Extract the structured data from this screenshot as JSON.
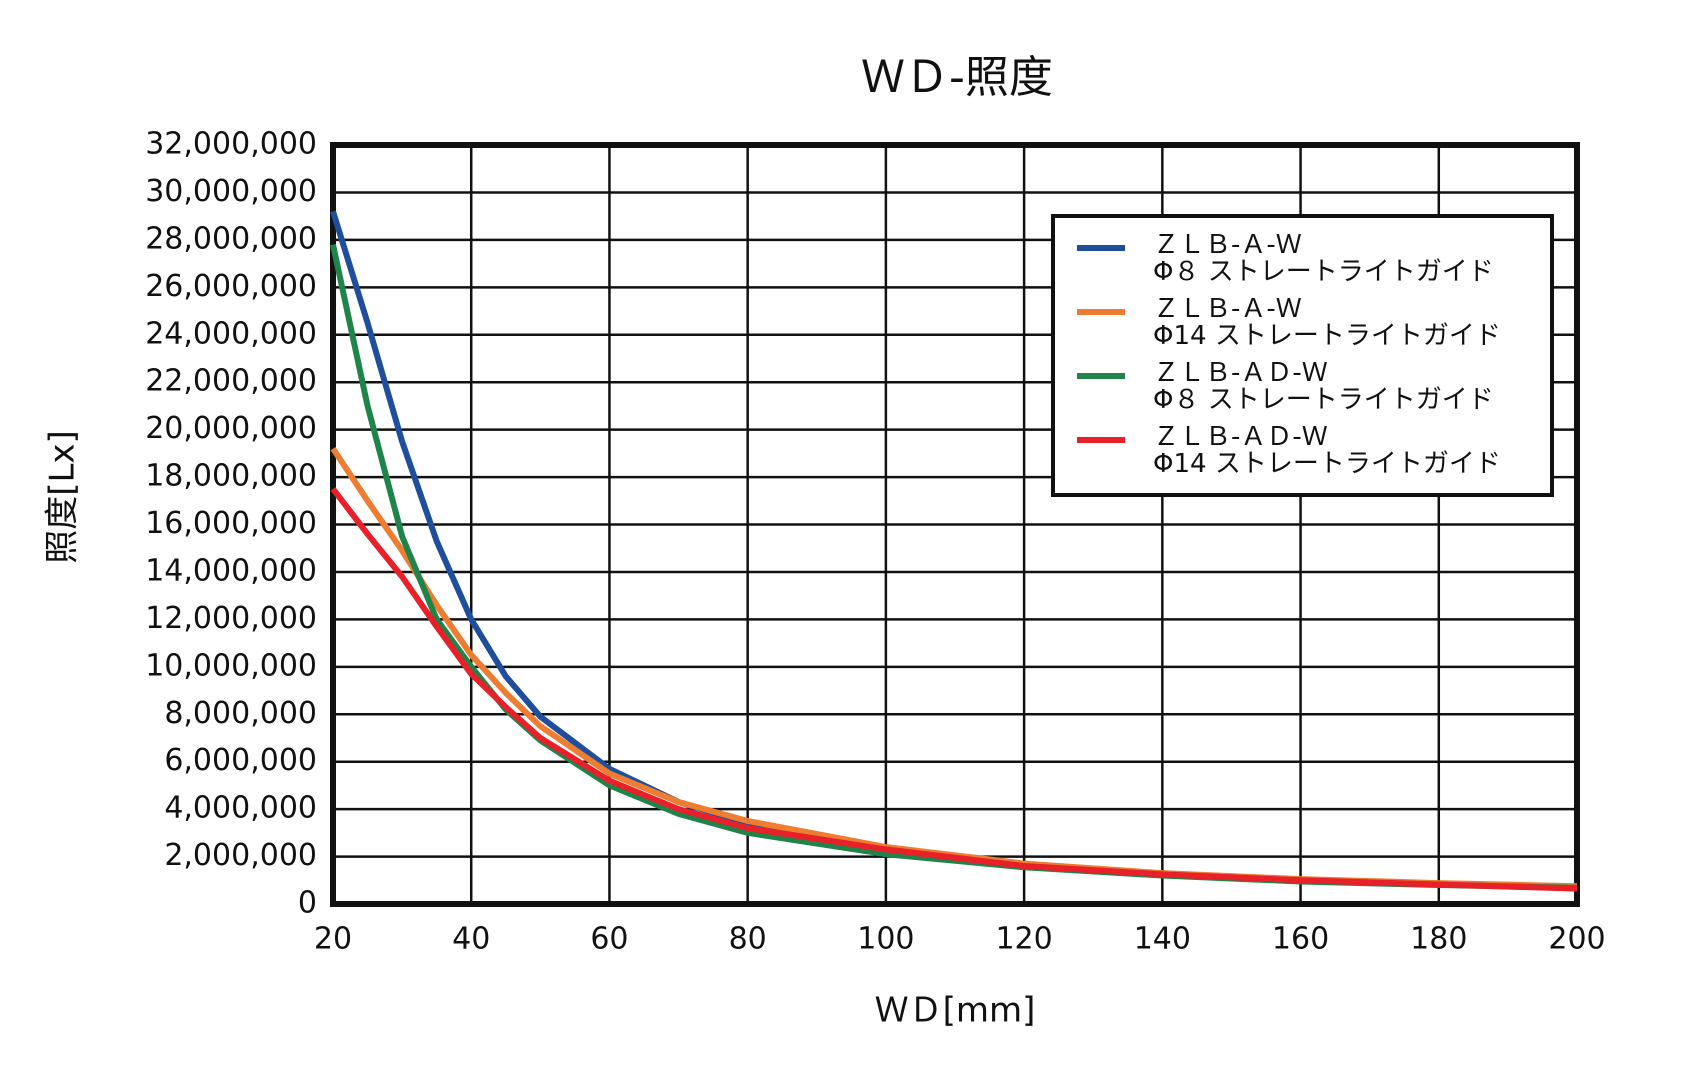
{
  "chart_data": {
    "type": "line",
    "title": "ＷＤ-照度",
    "x_label": "ＷＤ[mm]",
    "y_label": "照度[Lx]",
    "x": [
      20,
      25,
      30,
      35,
      40,
      45,
      50,
      60,
      70,
      80,
      100,
      120,
      140,
      160,
      180,
      200
    ],
    "series": [
      {
        "name": "ＺＬＢ-Ａ-Ｗ\nΦ８ ストレートライトガイド",
        "color": "#1f4e9c",
        "values": [
          29200000,
          24500000,
          19500000,
          15300000,
          12000000,
          9600000,
          7900000,
          5700000,
          4300000,
          3400000,
          2300000,
          1650000,
          1250000,
          1000000,
          820000,
          700000
        ]
      },
      {
        "name": "ＺＬＢ-Ａ-Ｗ\nΦ14 ストレートライトガイド",
        "color": "#ed7d31",
        "values": [
          19200000,
          17000000,
          14900000,
          12600000,
          10500000,
          8900000,
          7500000,
          5500000,
          4300000,
          3500000,
          2400000,
          1700000,
          1300000,
          1050000,
          880000,
          750000
        ]
      },
      {
        "name": "ＺＬＢ-ＡＤ-Ｗ\nΦ８ ストレートライトガイド",
        "color": "#1e8449",
        "values": [
          27800000,
          21000000,
          15500000,
          12000000,
          10000000,
          8200000,
          6900000,
          5000000,
          3800000,
          3000000,
          2100000,
          1550000,
          1200000,
          950000,
          800000,
          680000
        ]
      },
      {
        "name": "ＺＬＢ-ＡＤ-Ｗ\nΦ14 ストレートライトガイド",
        "color": "#e8202a",
        "values": [
          17500000,
          15600000,
          13800000,
          11700000,
          9700000,
          8300000,
          7000000,
          5200000,
          4000000,
          3200000,
          2300000,
          1600000,
          1250000,
          1000000,
          820000,
          650000
        ]
      }
    ],
    "xlim": [
      20,
      200
    ],
    "xticks": [
      20,
      40,
      60,
      80,
      100,
      120,
      140,
      160,
      180,
      200
    ],
    "ylim": [
      0,
      32000000
    ],
    "yticks": [
      0,
      {
        "value": 2000000,
        "label": "2,000,000"
      },
      {
        "value": 4000000,
        "label": "4,000,000"
      },
      {
        "value": 6000000,
        "label": "6,000,000"
      },
      {
        "value": 8000000,
        "label": "8,000,000"
      },
      {
        "value": 10000000,
        "label": "10,000,000"
      },
      {
        "value": 12000000,
        "label": "12,000,000"
      },
      {
        "value": 14000000,
        "label": "14,000,000"
      },
      {
        "value": 16000000,
        "label": "16,000,000"
      },
      {
        "value": 18000000,
        "label": "18,000,000"
      },
      {
        "value": 20000000,
        "label": "20,000,000"
      },
      {
        "value": 22000000,
        "label": "22,000,000"
      },
      {
        "value": 24000000,
        "label": "24,000,000"
      },
      {
        "value": 26000000,
        "label": "26,000,000"
      },
      {
        "value": 28000000,
        "label": "28,000,000"
      },
      {
        "value": 30000000,
        "label": "30,000,000"
      },
      {
        "value": 32000000,
        "label": "32,000,000"
      }
    ],
    "grid": true,
    "legend": "upper right"
  }
}
